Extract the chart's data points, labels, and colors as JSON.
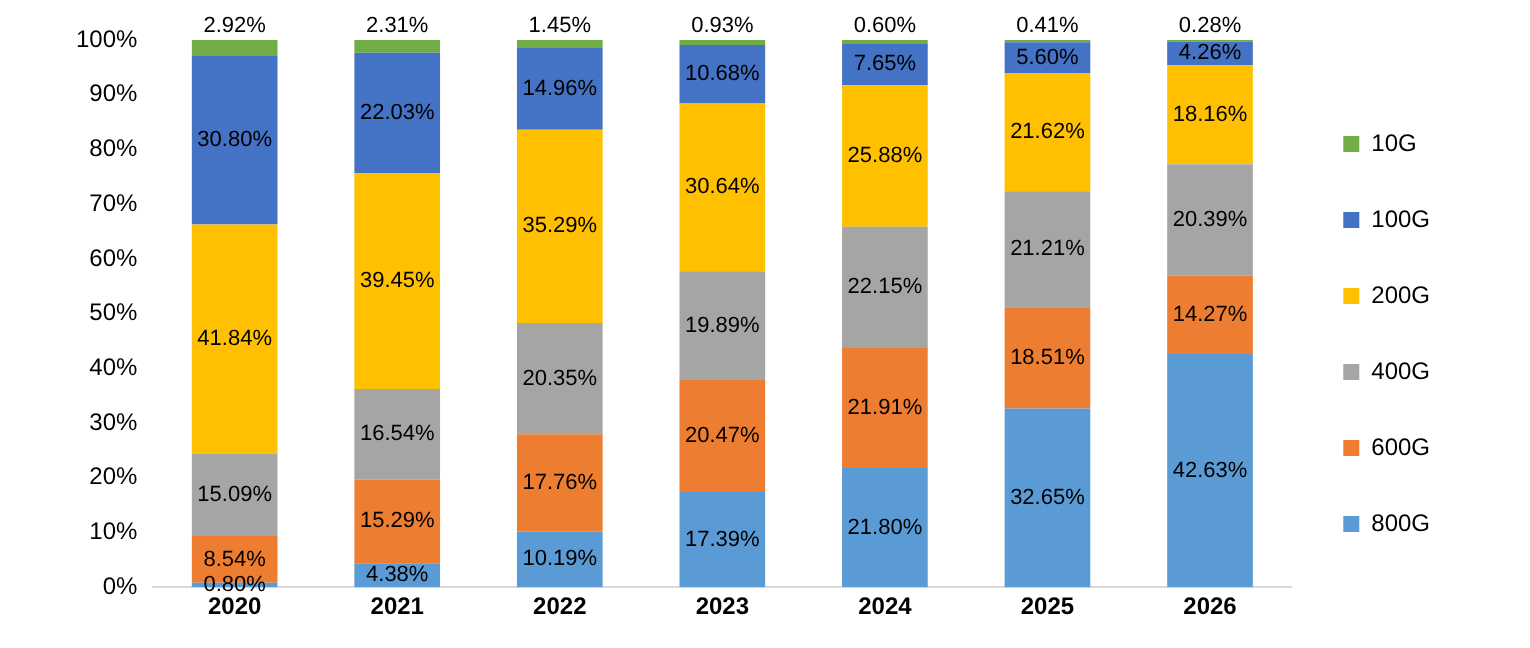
{
  "chart_data": {
    "type": "bar",
    "stacked": true,
    "categories": [
      "2020",
      "2021",
      "2022",
      "2023",
      "2024",
      "2025",
      "2026"
    ],
    "ylim": [
      0,
      100
    ],
    "yticks": [
      {
        "value": 0,
        "label": "0%"
      },
      {
        "value": 10,
        "label": "10%"
      },
      {
        "value": 20,
        "label": "20%"
      },
      {
        "value": 30,
        "label": "30%"
      },
      {
        "value": 40,
        "label": "40%"
      },
      {
        "value": 50,
        "label": "50%"
      },
      {
        "value": 60,
        "label": "60%"
      },
      {
        "value": 70,
        "label": "70%"
      },
      {
        "value": 80,
        "label": "80%"
      },
      {
        "value": 90,
        "label": "90%"
      },
      {
        "value": 100,
        "label": "100%"
      }
    ],
    "grid": false,
    "legend": "right",
    "series": [
      {
        "name": "800G",
        "color": "#5b9bd5",
        "values": [
          0.8,
          4.38,
          10.19,
          17.39,
          21.8,
          32.65,
          42.63
        ],
        "value_labels": [
          "0.80%",
          "4.38%",
          "10.19%",
          "17.39%",
          "21.80%",
          "32.65%",
          "42.63%"
        ]
      },
      {
        "name": "600G",
        "color": "#ed7d31",
        "values": [
          8.54,
          15.29,
          17.76,
          20.47,
          21.91,
          18.51,
          14.27
        ],
        "value_labels": [
          "8.54%",
          "15.29%",
          "17.76%",
          "20.47%",
          "21.91%",
          "18.51%",
          "14.27%"
        ]
      },
      {
        "name": "400G",
        "color": "#a5a5a5",
        "values": [
          15.09,
          16.54,
          20.35,
          19.89,
          22.15,
          21.21,
          20.39
        ],
        "value_labels": [
          "15.09%",
          "16.54%",
          "20.35%",
          "19.89%",
          "22.15%",
          "21.21%",
          "20.39%"
        ]
      },
      {
        "name": "200G",
        "color": "#ffc000",
        "values": [
          41.84,
          39.45,
          35.29,
          30.64,
          25.88,
          21.62,
          18.16
        ],
        "value_labels": [
          "41.84%",
          "39.45%",
          "35.29%",
          "30.64%",
          "25.88%",
          "21.62%",
          "18.16%"
        ]
      },
      {
        "name": "100G",
        "color": "#4472c4",
        "values": [
          30.8,
          22.03,
          14.96,
          10.68,
          7.65,
          5.6,
          4.26
        ],
        "value_labels": [
          "30.80%",
          "22.03%",
          "14.96%",
          "10.68%",
          "7.65%",
          "5.60%",
          "4.26%"
        ]
      },
      {
        "name": "10G",
        "color": "#70ad47",
        "values": [
          2.92,
          2.31,
          1.45,
          0.93,
          0.6,
          0.41,
          0.28
        ],
        "value_labels": [
          "2.92%",
          "2.31%",
          "1.45%",
          "0.93%",
          "0.60%",
          "0.41%",
          "0.28%"
        ]
      }
    ]
  }
}
